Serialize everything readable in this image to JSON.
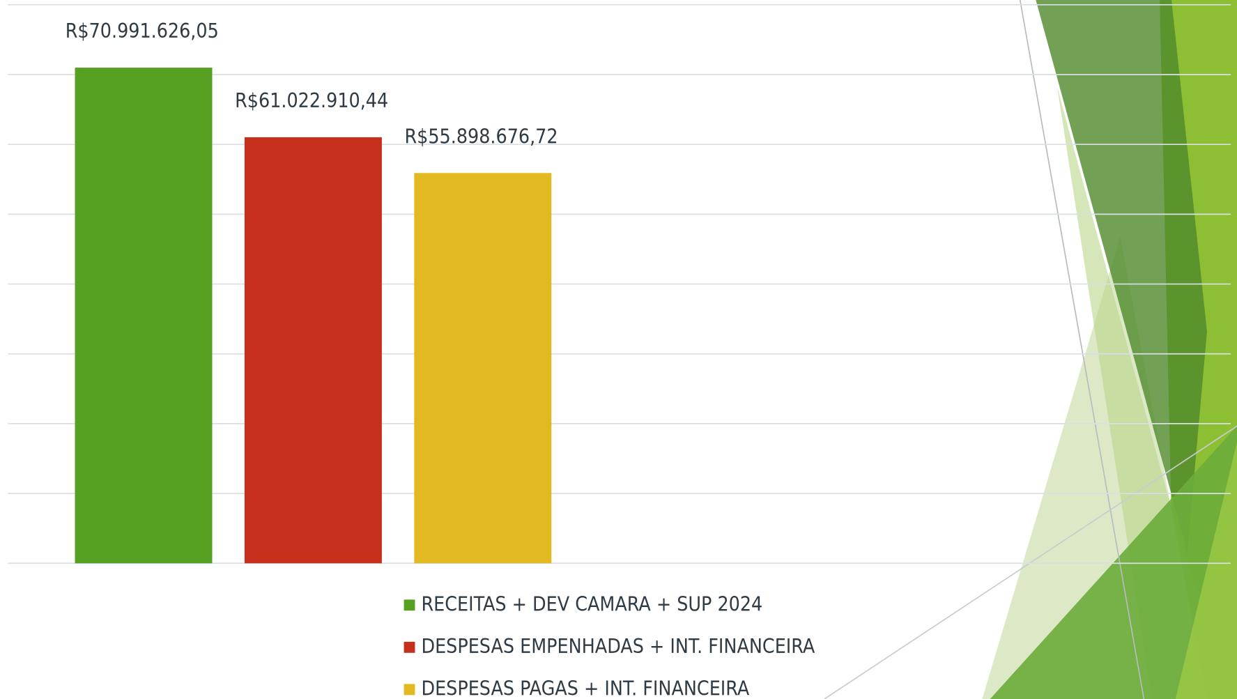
{
  "chart_data": {
    "type": "bar",
    "series": [
      {
        "name": "RECEITAS + DEV CAMARA + SUP 2024",
        "color": "#56a022",
        "values": [
          70991626.05
        ],
        "value_labels": [
          "R$70.991.626,05"
        ]
      },
      {
        "name": "DESPESAS EMPENHADAS + INT. FINANCEIRA",
        "color": "#c52f1b",
        "values": [
          61022910.44
        ],
        "value_labels": [
          "R$61.022.910,44"
        ]
      },
      {
        "name": "DESPESAS PAGAS + INT. FINANCEIRA",
        "color": "#e2b920",
        "values": [
          55898676.72
        ],
        "value_labels": [
          "R$55.898.676,72"
        ]
      }
    ],
    "ylim": [
      0,
      80000000
    ],
    "yticks": [
      0,
      10000000,
      20000000,
      30000000,
      40000000,
      50000000,
      60000000,
      70000000,
      80000000
    ],
    "grid": true,
    "legend": "bottom"
  }
}
